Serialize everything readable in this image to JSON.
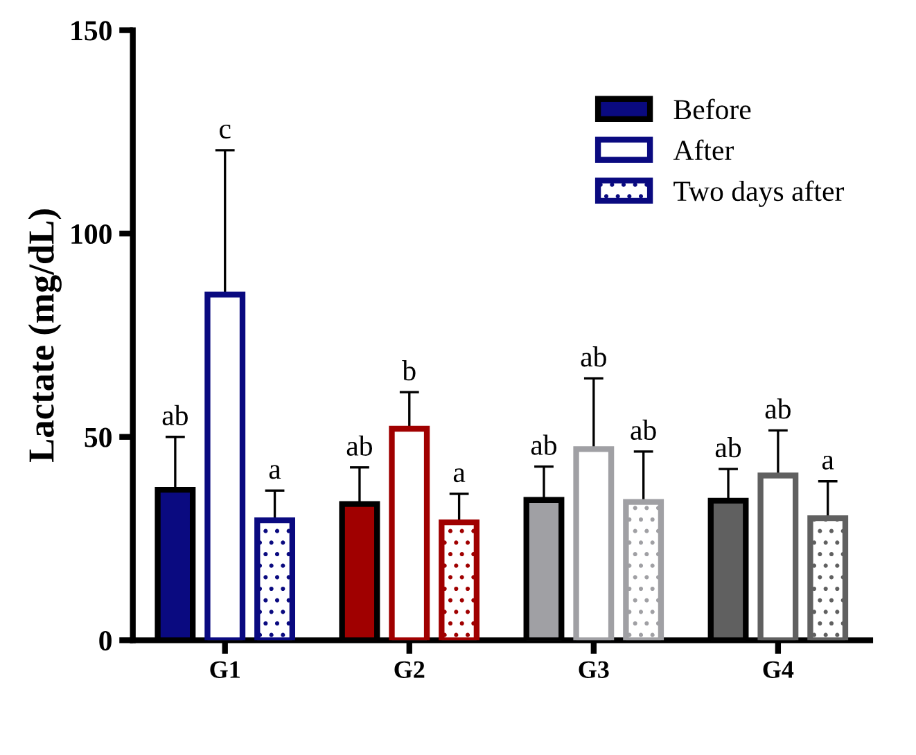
{
  "chart_data": {
    "type": "bar",
    "ylabel": "Lactate (mg/dL)",
    "categories": [
      "G1",
      "G2",
      "G3",
      "G4"
    ],
    "series": [
      {
        "name": "Before",
        "color": "#0a0a80",
        "colors": [
          "#0a0a80",
          "#a00000",
          "#a0a0a4",
          "#606060"
        ],
        "values": [
          37,
          33.5,
          34.5,
          34.3
        ],
        "errors": [
          [
            37,
            50
          ],
          [
            33.5,
            42.5
          ],
          [
            34.5,
            42.7
          ],
          [
            34.3,
            42.1
          ]
        ]
      },
      {
        "name": "After",
        "color": "#0a0a80",
        "colors": [
          "#0a0a80",
          "#a00000",
          "#a0a0a4",
          "#606060"
        ],
        "values": [
          85,
          52,
          47,
          40.5
        ],
        "errors": [
          [
            85,
            120.5
          ],
          [
            52,
            61
          ],
          [
            47,
            64.4
          ],
          [
            40.5,
            51.6
          ]
        ]
      },
      {
        "name": "Two days after",
        "color": "#0a0a80",
        "colors": [
          "#0a0a80",
          "#a00000",
          "#a0a0a4",
          "#606060"
        ],
        "values": [
          29.5,
          29,
          34,
          30
        ],
        "errors": [
          [
            29.5,
            36.8
          ],
          [
            29,
            36
          ],
          [
            34,
            46.4
          ],
          [
            30,
            39.1
          ]
        ]
      }
    ],
    "ylim": [
      0,
      150
    ],
    "yticks": [
      0,
      50,
      100,
      150
    ],
    "grid": false,
    "legend": "top right",
    "annotations": [
      "ab",
      "c",
      "a",
      "ab",
      "b",
      "a",
      "ab",
      "ab",
      "ab",
      "ab",
      "ab",
      "a"
    ]
  }
}
